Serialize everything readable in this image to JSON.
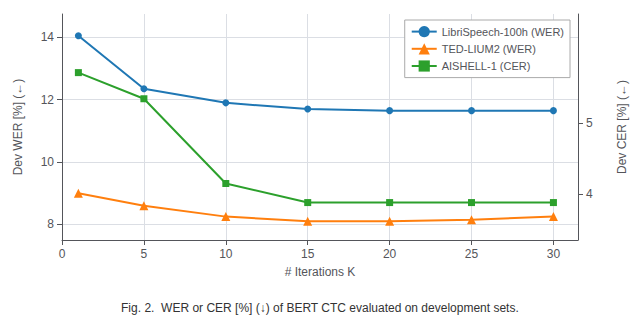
{
  "chart_data": {
    "type": "line",
    "x": [
      1,
      5,
      10,
      15,
      20,
      25,
      30
    ],
    "series": [
      {
        "name": "LibriSpeech-100h (WER)",
        "color": "#1f77b4",
        "marker": "circle",
        "values": [
          14.05,
          12.35,
          11.9,
          11.7,
          11.65,
          11.65,
          11.65
        ]
      },
      {
        "name": "TED-LIUM2 (WER)",
        "color": "#ff7f0e",
        "marker": "triangle",
        "values": [
          9.0,
          8.6,
          8.25,
          8.1,
          8.1,
          8.15,
          8.25
        ]
      },
      {
        "name": "AISHELL-1 (CER)",
        "color": "#2ca02c",
        "marker": "square",
        "axis": "y2",
        "values": [
          5.72,
          5.35,
          4.15,
          3.88,
          3.88,
          3.88,
          3.88
        ]
      }
    ],
    "xlabel": "# Iterations K",
    "ylabel": "Dev WER [%] (←)",
    "y2label": "Dev CER [%] (←)",
    "xlim": [
      0,
      31.5
    ],
    "xticks": [
      0,
      5,
      10,
      15,
      20,
      25,
      30
    ],
    "ylim": [
      7.5,
      14.75
    ],
    "yticks": [
      8,
      10,
      12,
      14
    ],
    "y2lim": [
      3.35,
      6.55
    ],
    "y2ticks": [
      4,
      5
    ],
    "grid": true,
    "legend": "upper right",
    "annotations": [
      "Fig. 2.  WER or CER [%] (↓) of BERT CTC evaluated on development sets."
    ]
  }
}
